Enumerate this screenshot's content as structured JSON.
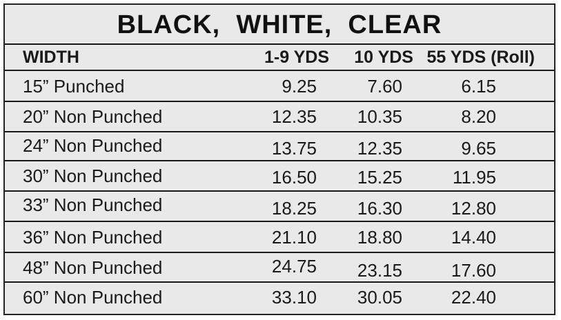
{
  "table": {
    "title": "BLACK,  WHITE,  CLEAR",
    "headers": [
      "WIDTH",
      "1-9 YDS",
      "10 YDS",
      "55 YDS (Roll)"
    ],
    "rows": [
      [
        "15” Punched",
        "9.25",
        "7.60",
        "6.15"
      ],
      [
        "20” Non Punched",
        "12.35",
        "10.35",
        "8.20"
      ],
      [
        "24” Non Punched",
        "13.75",
        "12.35",
        "9.65"
      ],
      [
        "30” Non Punched",
        "16.50",
        "15.25",
        "11.95"
      ],
      [
        "33” Non Punched",
        "18.25",
        "16.30",
        "12.80"
      ],
      [
        "36” Non Punched",
        "21.10",
        "18.80",
        "14.40"
      ],
      [
        "48” Non Punched",
        "24.75",
        "23.15",
        "17.60"
      ],
      [
        "60” Non Punched",
        "33.10",
        "30.05",
        "22.40"
      ]
    ]
  }
}
